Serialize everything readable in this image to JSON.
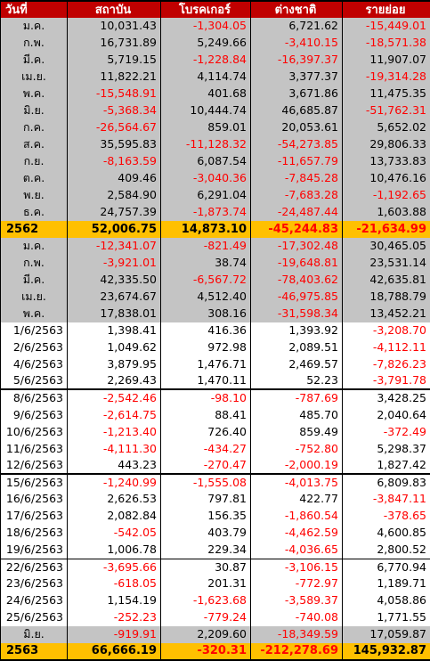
{
  "colors": {
    "header_bg": "#c00000",
    "month_bg": "#c4c4c4",
    "total_bg": "#ffc000",
    "negative": "#ff0000"
  },
  "headers": [
    "วันที่",
    "สถาบัน",
    "โบรคเกอร์",
    "ต่างชาติ",
    "รายย่อย"
  ],
  "rows": [
    {
      "label": "ม.ค.",
      "kind": "month",
      "values": [
        "10,031.43",
        "-1,304.05",
        "6,721.62",
        "-15,449.01"
      ]
    },
    {
      "label": "ก.พ.",
      "kind": "month",
      "values": [
        "16,731.89",
        "5,249.66",
        "-3,410.15",
        "-18,571.38"
      ]
    },
    {
      "label": "มี.ค.",
      "kind": "month",
      "values": [
        "5,719.15",
        "-1,228.84",
        "-16,397.37",
        "11,907.07"
      ]
    },
    {
      "label": "เม.ย.",
      "kind": "month",
      "values": [
        "11,822.21",
        "4,114.74",
        "3,377.37",
        "-19,314.28"
      ]
    },
    {
      "label": "พ.ค.",
      "kind": "month",
      "values": [
        "-15,548.91",
        "401.68",
        "3,671.86",
        "11,475.35"
      ]
    },
    {
      "label": "มิ.ย.",
      "kind": "month",
      "values": [
        "-5,368.34",
        "10,444.74",
        "46,685.87",
        "-51,762.31"
      ]
    },
    {
      "label": "ก.ค.",
      "kind": "month",
      "values": [
        "-26,564.67",
        "859.01",
        "20,053.61",
        "5,652.02"
      ]
    },
    {
      "label": "ส.ค.",
      "kind": "month",
      "values": [
        "35,595.83",
        "-11,128.32",
        "-54,273.85",
        "29,806.33"
      ]
    },
    {
      "label": "ก.ย.",
      "kind": "month",
      "values": [
        "-8,163.59",
        "6,087.54",
        "-11,657.79",
        "13,733.83"
      ]
    },
    {
      "label": "ต.ค.",
      "kind": "month",
      "values": [
        "409.46",
        "-3,040.36",
        "-7,845.28",
        "10,476.16"
      ]
    },
    {
      "label": "พ.ย.",
      "kind": "month",
      "values": [
        "2,584.90",
        "6,291.04",
        "-7,683.28",
        "-1,192.65"
      ]
    },
    {
      "label": "ธ.ค.",
      "kind": "month",
      "values": [
        "24,757.39",
        "-1,873.74",
        "-24,487.44",
        "1,603.88"
      ]
    },
    {
      "label": "2562",
      "kind": "total",
      "values": [
        "52,006.75",
        "14,873.10",
        "-45,244.83",
        "-21,634.99"
      ]
    },
    {
      "label": "ม.ค.",
      "kind": "month",
      "values": [
        "-12,341.07",
        "-821.49",
        "-17,302.48",
        "30,465.05"
      ]
    },
    {
      "label": "ก.พ.",
      "kind": "month",
      "values": [
        "-3,921.01",
        "38.74",
        "-19,648.81",
        "23,531.14"
      ]
    },
    {
      "label": "มี.ค.",
      "kind": "month",
      "values": [
        "42,335.50",
        "-6,567.72",
        "-78,403.62",
        "42,635.81"
      ]
    },
    {
      "label": "เม.ย.",
      "kind": "month",
      "values": [
        "23,674.67",
        "4,512.40",
        "-46,975.85",
        "18,788.79"
      ]
    },
    {
      "label": "พ.ค.",
      "kind": "month",
      "values": [
        "17,838.01",
        "308.16",
        "-31,598.34",
        "13,452.21"
      ]
    },
    {
      "label": "1/6/2563",
      "kind": "day",
      "values": [
        "1,398.41",
        "416.36",
        "1,393.92",
        "-3,208.70"
      ]
    },
    {
      "label": "2/6/2563",
      "kind": "day",
      "values": [
        "1,049.62",
        "972.98",
        "2,089.51",
        "-4,112.11"
      ]
    },
    {
      "label": "4/6/2563",
      "kind": "day",
      "values": [
        "3,879.95",
        "1,476.71",
        "2,469.57",
        "-7,826.23"
      ]
    },
    {
      "label": "5/6/2563",
      "kind": "day",
      "values": [
        "2,269.43",
        "1,470.11",
        "52.23",
        "-3,791.78"
      ]
    },
    {
      "label": "8/6/2563",
      "kind": "day",
      "sep": "thick",
      "values": [
        "-2,542.46",
        "-98.10",
        "-787.69",
        "3,428.25"
      ]
    },
    {
      "label": "9/6/2563",
      "kind": "day",
      "values": [
        "-2,614.75",
        "88.41",
        "485.70",
        "2,040.64"
      ]
    },
    {
      "label": "10/6/2563",
      "kind": "day",
      "values": [
        "-1,213.40",
        "726.40",
        "859.49",
        "-372.49"
      ]
    },
    {
      "label": "11/6/2563",
      "kind": "day",
      "values": [
        "-4,111.30",
        "-434.27",
        "-752.80",
        "5,298.37"
      ]
    },
    {
      "label": "12/6/2563",
      "kind": "day",
      "values": [
        "443.23",
        "-270.47",
        "-2,000.19",
        "1,827.42"
      ]
    },
    {
      "label": "15/6/2563",
      "kind": "day",
      "sep": "thick",
      "values": [
        "-1,240.99",
        "-1,555.08",
        "-4,013.75",
        "6,809.83"
      ]
    },
    {
      "label": "16/6/2563",
      "kind": "day",
      "values": [
        "2,626.53",
        "797.81",
        "422.77",
        "-3,847.11"
      ]
    },
    {
      "label": "17/6/2563",
      "kind": "day",
      "values": [
        "2,082.84",
        "156.35",
        "-1,860.54",
        "-378.65"
      ]
    },
    {
      "label": "18/6/2563",
      "kind": "day",
      "values": [
        "-542.05",
        "403.79",
        "-4,462.59",
        "4,600.85"
      ]
    },
    {
      "label": "19/6/2563",
      "kind": "day",
      "values": [
        "1,006.78",
        "229.34",
        "-4,036.65",
        "2,800.52"
      ]
    },
    {
      "label": "22/6/2563",
      "kind": "day",
      "sep": "thin",
      "values": [
        "-3,695.66",
        "30.87",
        "-3,106.15",
        "6,770.94"
      ]
    },
    {
      "label": "23/6/2563",
      "kind": "day",
      "values": [
        "-618.05",
        "201.31",
        "-772.97",
        "1,189.71"
      ]
    },
    {
      "label": "24/6/2563",
      "kind": "day",
      "values": [
        "1,154.19",
        "-1,623.68",
        "-3,589.37",
        "4,058.86"
      ]
    },
    {
      "label": "25/6/2563",
      "kind": "day",
      "values": [
        "-252.23",
        "-779.24",
        "-740.08",
        "1,771.55"
      ]
    },
    {
      "label": "มิ.ย.",
      "kind": "month",
      "values": [
        "-919.91",
        "2,209.60",
        "-18,349.59",
        "17,059.87"
      ]
    },
    {
      "label": "2563",
      "kind": "total",
      "values": [
        "66,666.19",
        "-320.31",
        "-212,278.69",
        "145,932.87"
      ]
    }
  ]
}
